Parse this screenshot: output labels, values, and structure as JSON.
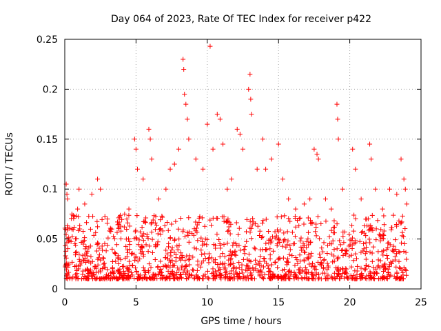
{
  "chart_data": {
    "type": "scatter",
    "title": "Day 064 of 2023, Rate Of TEC Index for receiver p422",
    "xlabel": "GPS time / hours",
    "ylabel": "ROTI / TECUs",
    "xlim": [
      0,
      25
    ],
    "ylim": [
      0,
      0.25
    ],
    "xticks": [
      0,
      5,
      10,
      15,
      20,
      25
    ],
    "yticks": [
      0,
      0.05,
      0.1,
      0.15,
      0.2,
      0.25
    ],
    "xtick_labels": [
      "0",
      "5",
      "10",
      "15",
      "20",
      "25"
    ],
    "ytick_labels": [
      "0",
      "0.05",
      "0.1",
      "0.15",
      "0.2",
      "0.25"
    ],
    "grid": true,
    "marker": "+",
    "color": "#ff0000",
    "data_x_range": [
      0,
      24
    ],
    "dense_band": [
      0.01,
      0.05
    ],
    "series": [
      {
        "values": [
          [
            0.1,
            0.105
          ],
          [
            0.15,
            0.095
          ],
          [
            0.2,
            0.09
          ],
          [
            0.5,
            0.075
          ],
          [
            0.9,
            0.08
          ],
          [
            1.0,
            0.1
          ],
          [
            1.4,
            0.085
          ],
          [
            1.9,
            0.095
          ],
          [
            2.3,
            0.11
          ],
          [
            2.5,
            0.1
          ],
          [
            3.0,
            0.07
          ],
          [
            3.3,
            0.06
          ],
          [
            3.8,
            0.065
          ],
          [
            4.2,
            0.075
          ],
          [
            4.5,
            0.08
          ],
          [
            4.9,
            0.15
          ],
          [
            5.0,
            0.14
          ],
          [
            5.1,
            0.12
          ],
          [
            5.5,
            0.11
          ],
          [
            5.9,
            0.16
          ],
          [
            6.0,
            0.15
          ],
          [
            6.1,
            0.13
          ],
          [
            6.6,
            0.09
          ],
          [
            7.1,
            0.1
          ],
          [
            7.4,
            0.12
          ],
          [
            7.7,
            0.125
          ],
          [
            8.0,
            0.14
          ],
          [
            8.3,
            0.23
          ],
          [
            8.35,
            0.22
          ],
          [
            8.4,
            0.195
          ],
          [
            8.5,
            0.185
          ],
          [
            8.6,
            0.17
          ],
          [
            8.7,
            0.15
          ],
          [
            9.2,
            0.13
          ],
          [
            9.7,
            0.12
          ],
          [
            10.0,
            0.165
          ],
          [
            10.2,
            0.243
          ],
          [
            10.4,
            0.14
          ],
          [
            10.7,
            0.175
          ],
          [
            10.9,
            0.17
          ],
          [
            11.1,
            0.145
          ],
          [
            11.4,
            0.1
          ],
          [
            11.7,
            0.11
          ],
          [
            12.1,
            0.16
          ],
          [
            12.3,
            0.155
          ],
          [
            12.5,
            0.14
          ],
          [
            12.9,
            0.2
          ],
          [
            13.0,
            0.215
          ],
          [
            13.05,
            0.19
          ],
          [
            13.1,
            0.175
          ],
          [
            13.5,
            0.12
          ],
          [
            13.9,
            0.15
          ],
          [
            14.1,
            0.12
          ],
          [
            14.5,
            0.13
          ],
          [
            15.0,
            0.145
          ],
          [
            15.3,
            0.11
          ],
          [
            15.7,
            0.09
          ],
          [
            16.2,
            0.08
          ],
          [
            16.8,
            0.085
          ],
          [
            17.2,
            0.09
          ],
          [
            17.5,
            0.14
          ],
          [
            17.7,
            0.135
          ],
          [
            17.8,
            0.13
          ],
          [
            18.3,
            0.09
          ],
          [
            18.7,
            0.08
          ],
          [
            19.1,
            0.185
          ],
          [
            19.15,
            0.17
          ],
          [
            19.2,
            0.15
          ],
          [
            19.5,
            0.1
          ],
          [
            20.2,
            0.14
          ],
          [
            20.4,
            0.12
          ],
          [
            20.8,
            0.09
          ],
          [
            21.4,
            0.145
          ],
          [
            21.5,
            0.13
          ],
          [
            21.8,
            0.1
          ],
          [
            22.3,
            0.08
          ],
          [
            22.8,
            0.1
          ],
          [
            23.3,
            0.095
          ],
          [
            23.6,
            0.13
          ],
          [
            23.8,
            0.11
          ],
          [
            23.9,
            0.1
          ],
          [
            24.0,
            0.085
          ]
        ]
      }
    ]
  }
}
